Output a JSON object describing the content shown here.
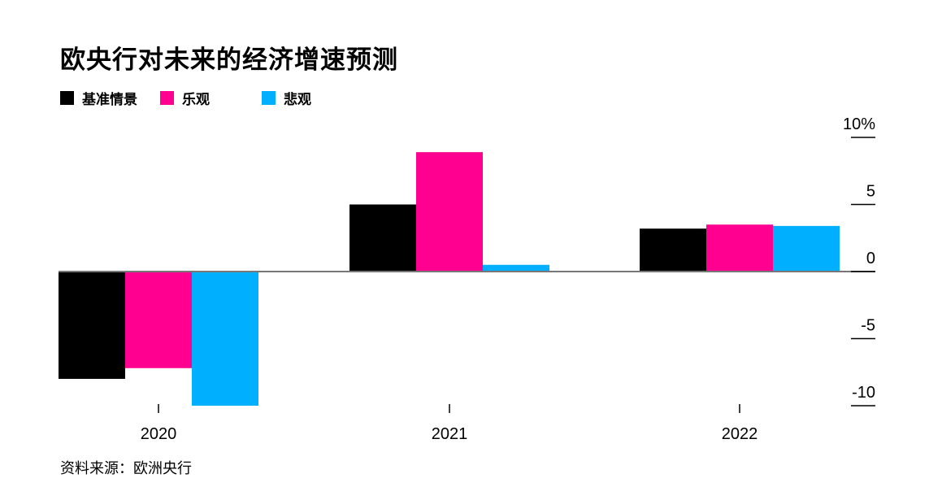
{
  "chart_data": {
    "type": "bar",
    "title": "欧央行对未来的经济增速预测",
    "categories": [
      "2020",
      "2021",
      "2022"
    ],
    "series": [
      {
        "name": "基准情景",
        "color": "#000000",
        "values": [
          -8.0,
          5.0,
          3.2
        ]
      },
      {
        "name": "乐观",
        "color": "#ff0090",
        "values": [
          -7.2,
          8.9,
          3.5
        ]
      },
      {
        "name": "悲观",
        "color": "#00b0ff",
        "values": [
          -10.0,
          0.5,
          3.4
        ]
      }
    ],
    "ylim": [
      -10,
      10
    ],
    "y_ticks": [
      10,
      5,
      0,
      -5,
      -10
    ],
    "y_tick_labels": [
      "10%",
      "5",
      "0",
      "-5",
      "-10"
    ],
    "y_axis_position": "right",
    "legend_position": "top-left",
    "grid": false,
    "source": "资料来源：欧洲央行"
  }
}
